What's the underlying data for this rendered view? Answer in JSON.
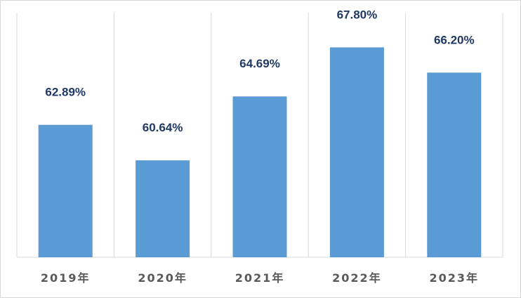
{
  "chart_data": {
    "type": "bar",
    "categories": [
      "2019年",
      "2020年",
      "2021年",
      "2022年",
      "2023年"
    ],
    "values": [
      62.89,
      60.64,
      64.69,
      67.8,
      66.2
    ],
    "data_labels": [
      "62.89%",
      "60.64%",
      "64.69%",
      "67.80%",
      "66.20%"
    ],
    "ylim": [
      54.5,
      70.0
    ],
    "grid": "vertical",
    "legend": "none",
    "colors": {
      "bar": "#5b9bd5",
      "label": "#1f3864",
      "tick": "#595959",
      "grid": "#d9d9d9"
    }
  }
}
